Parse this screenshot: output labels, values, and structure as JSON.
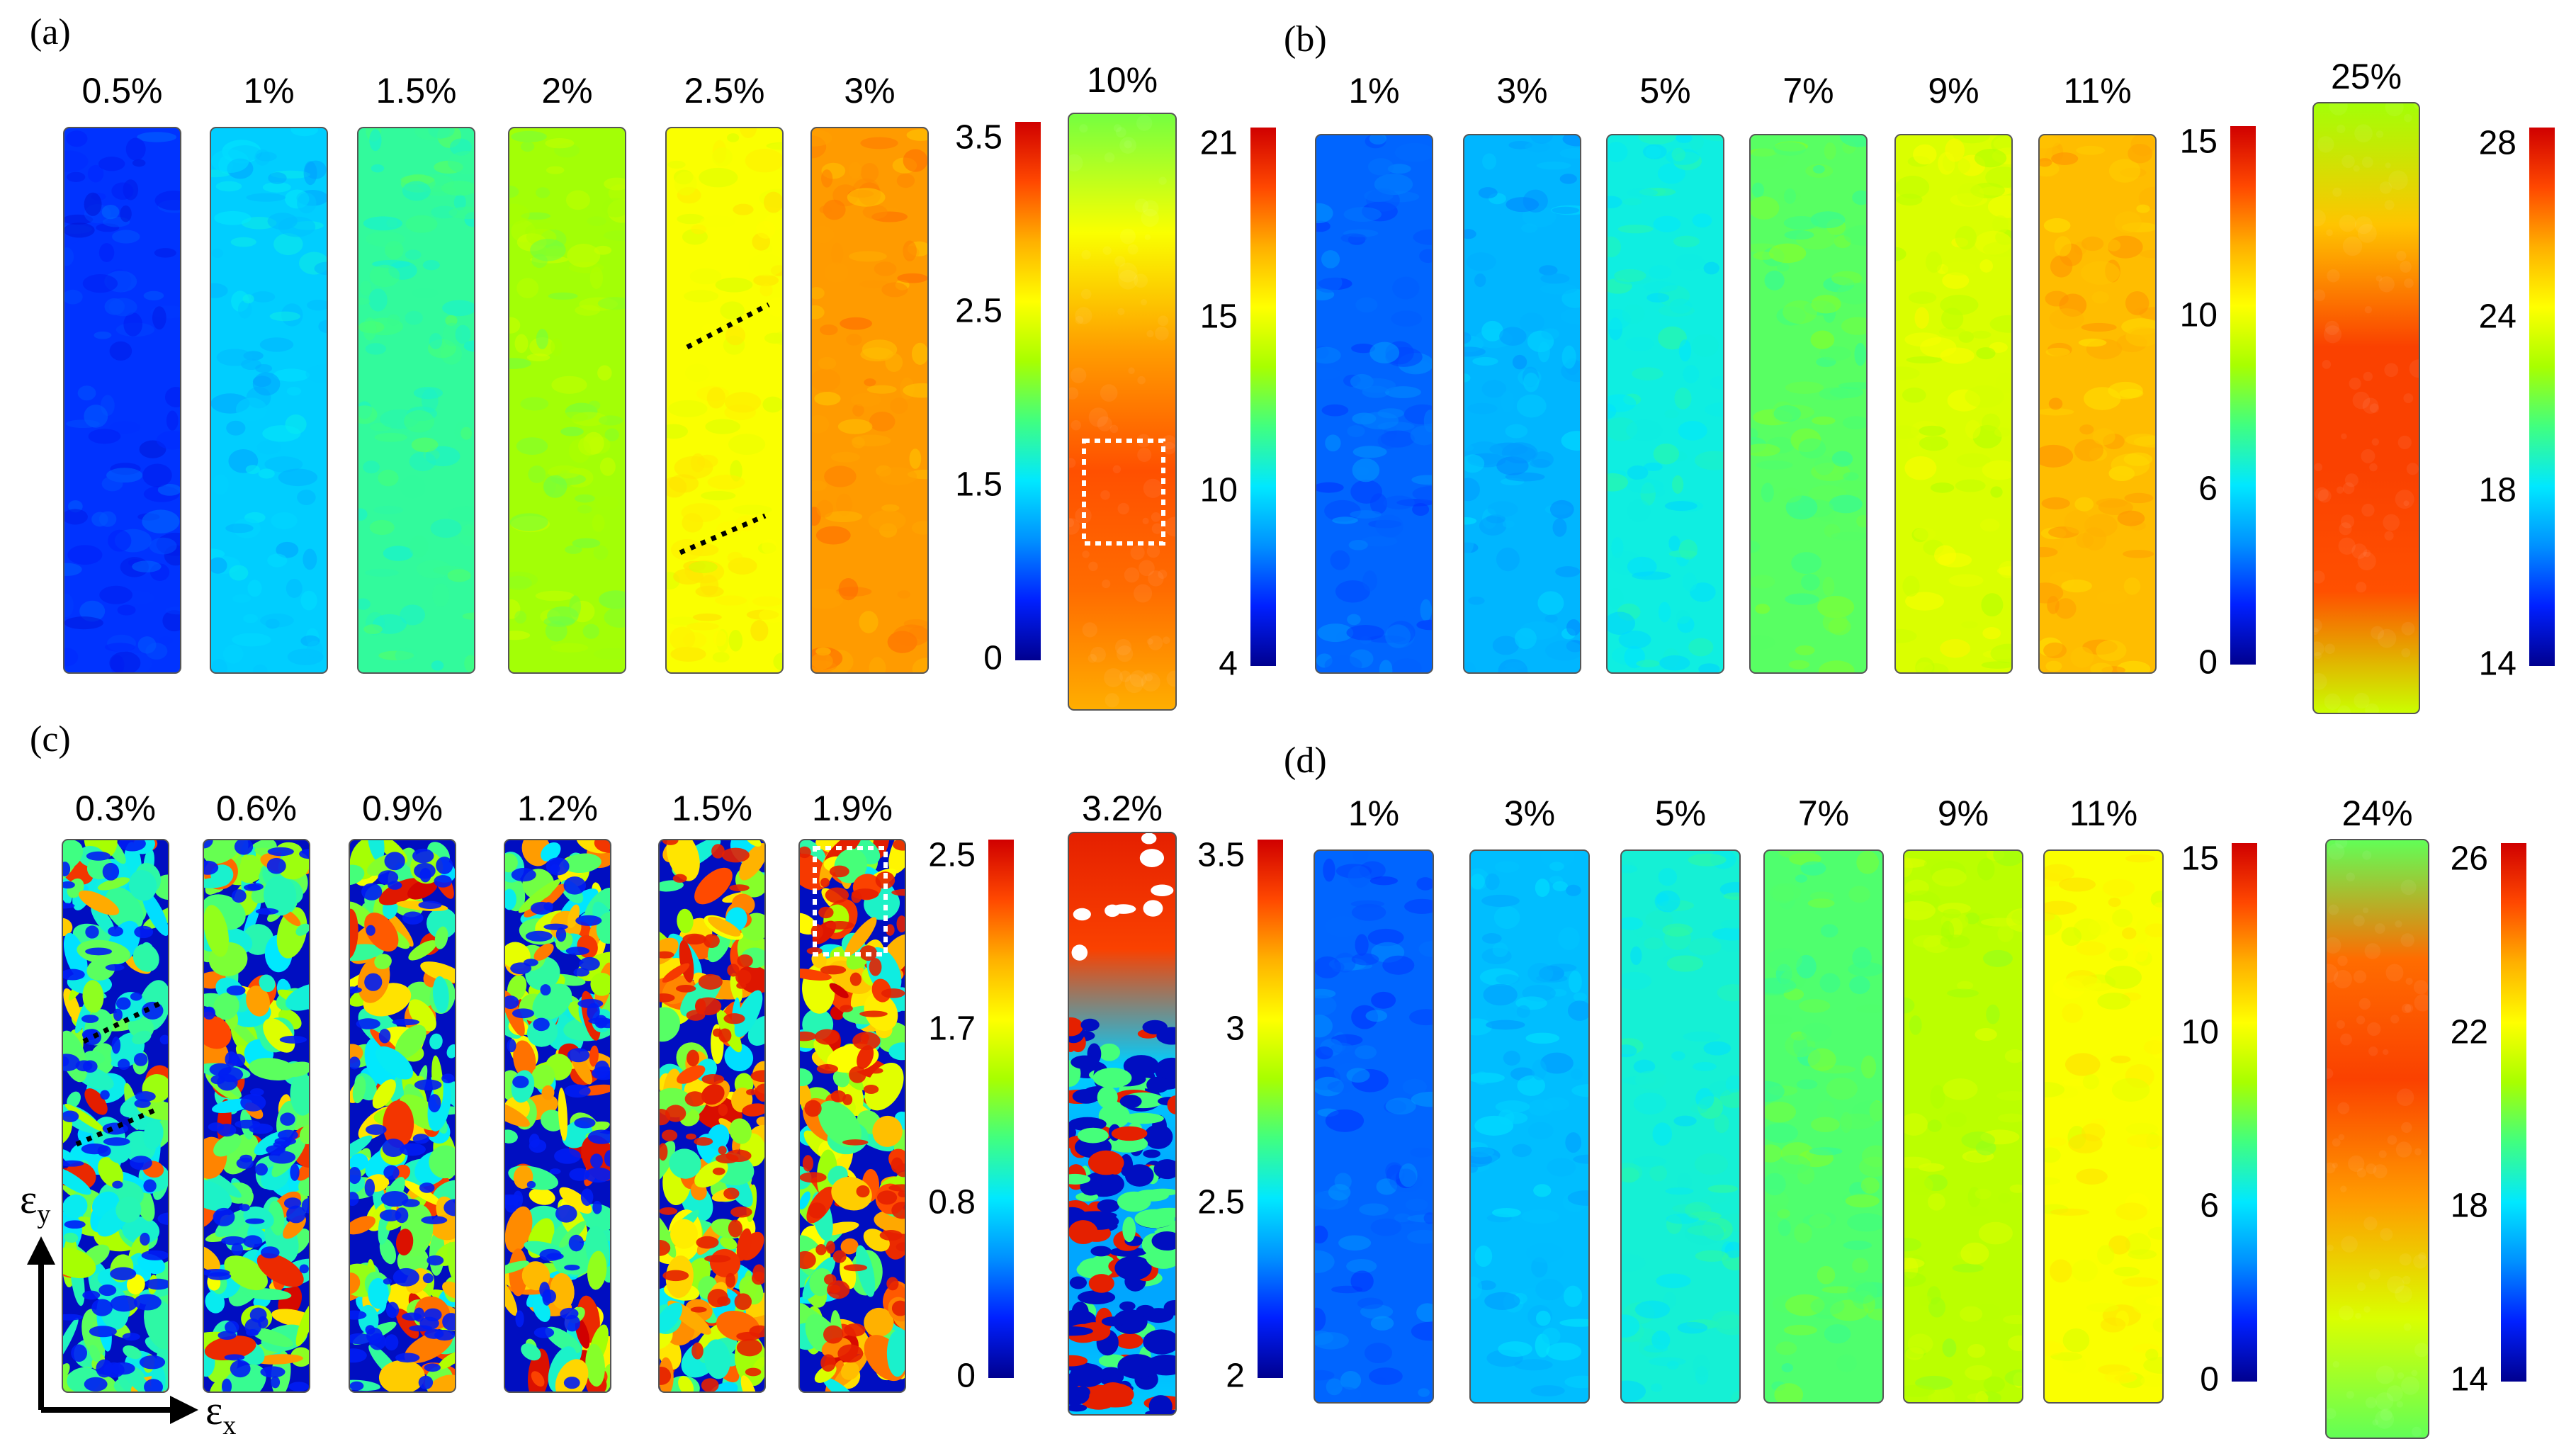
{
  "colors": {
    "jet": [
      "#00008f",
      "#0020ff",
      "#0090ff",
      "#00e8ff",
      "#40ff80",
      "#a8ff00",
      "#ffff00",
      "#ffb000",
      "#ff4800",
      "#d00000"
    ],
    "outline": "#555555",
    "dots": "#000000",
    "white_box": "#ffffff",
    "hole": "#ffffff"
  },
  "panels": [
    {
      "id": "a",
      "label": "(a)",
      "strips": [
        {
          "label": "0.5%",
          "level": 0.13,
          "texture": "smooth"
        },
        {
          "label": "1%",
          "level": 0.3,
          "texture": "smooth"
        },
        {
          "label": "1.5%",
          "level": 0.42,
          "texture": "smooth"
        },
        {
          "label": "2%",
          "level": 0.55,
          "texture": "smooth"
        },
        {
          "label": "2.5%",
          "level": 0.66,
          "texture": "smooth",
          "dashed_lines": true
        },
        {
          "label": "3%",
          "level": 0.8,
          "texture": "smooth"
        }
      ],
      "colorbar": {
        "ticks": [
          "3.5",
          "2.5",
          "1.5",
          "0"
        ]
      },
      "big_strip": {
        "label": "10%",
        "gradient": [
          0.5,
          0.66,
          0.8,
          0.88,
          0.85,
          0.78
        ]
      },
      "big_colorbar": {
        "ticks": [
          "21",
          "15",
          "10",
          "4"
        ]
      }
    },
    {
      "id": "b",
      "label": "(b)",
      "strips": [
        {
          "label": "1%",
          "level": 0.18,
          "texture": "smooth"
        },
        {
          "label": "3%",
          "level": 0.27,
          "texture": "smooth"
        },
        {
          "label": "5%",
          "level": 0.36,
          "texture": "smooth"
        },
        {
          "label": "7%",
          "level": 0.47,
          "texture": "smooth"
        },
        {
          "label": "9%",
          "level": 0.62,
          "texture": "smooth"
        },
        {
          "label": "11%",
          "level": 0.76,
          "texture": "smooth"
        }
      ],
      "colorbar": {
        "ticks": [
          "15",
          "10",
          "6",
          "0"
        ]
      },
      "big_strip": {
        "label": "25%",
        "gradient": [
          0.55,
          0.75,
          0.9,
          0.9,
          0.88,
          0.6
        ]
      },
      "big_colorbar": {
        "ticks": [
          "28",
          "24",
          "18",
          "14"
        ]
      }
    },
    {
      "id": "c",
      "label": "(c)",
      "strips": [
        {
          "label": "0.3%",
          "level": 0.12,
          "texture": "patchy"
        },
        {
          "label": "0.6%",
          "level": 0.25,
          "texture": "patchy"
        },
        {
          "label": "0.9%",
          "level": 0.4,
          "texture": "patchy"
        },
        {
          "label": "1.2%",
          "level": 0.5,
          "texture": "patchy"
        },
        {
          "label": "1.5%",
          "level": 0.58,
          "texture": "patchy"
        },
        {
          "label": "1.9%",
          "level": 0.66,
          "texture": "patchy",
          "white_box": true
        }
      ],
      "colorbar": {
        "ticks": [
          "2.5",
          "1.7",
          "0.8",
          "0"
        ]
      },
      "big_strip": {
        "label": "3.2%",
        "gradient": [
          0.95,
          0.9,
          0.3,
          0.25,
          0.25,
          0.3
        ]
      },
      "big_colorbar": {
        "ticks": [
          "3.5",
          "3",
          "2.5",
          "2"
        ]
      }
    },
    {
      "id": "d",
      "label": "(d)",
      "strips": [
        {
          "label": "1%",
          "level": 0.18,
          "texture": "smooth"
        },
        {
          "label": "3%",
          "level": 0.28,
          "texture": "smooth"
        },
        {
          "label": "5%",
          "level": 0.37,
          "texture": "smooth"
        },
        {
          "label": "7%",
          "level": 0.46,
          "texture": "smooth"
        },
        {
          "label": "9%",
          "level": 0.58,
          "texture": "smooth"
        },
        {
          "label": "11%",
          "level": 0.66,
          "texture": "smooth"
        }
      ],
      "colorbar": {
        "ticks": [
          "15",
          "10",
          "6",
          "0"
        ]
      },
      "big_strip": {
        "label": "24%",
        "gradient": [
          0.48,
          0.85,
          0.9,
          0.8,
          0.62,
          0.48
        ]
      },
      "big_colorbar": {
        "ticks": [
          "26",
          "22",
          "18",
          "14"
        ]
      }
    }
  ],
  "axes": {
    "y_symbol": "ε",
    "y_sub": "y",
    "x_symbol": "ε",
    "x_sub": "x"
  }
}
